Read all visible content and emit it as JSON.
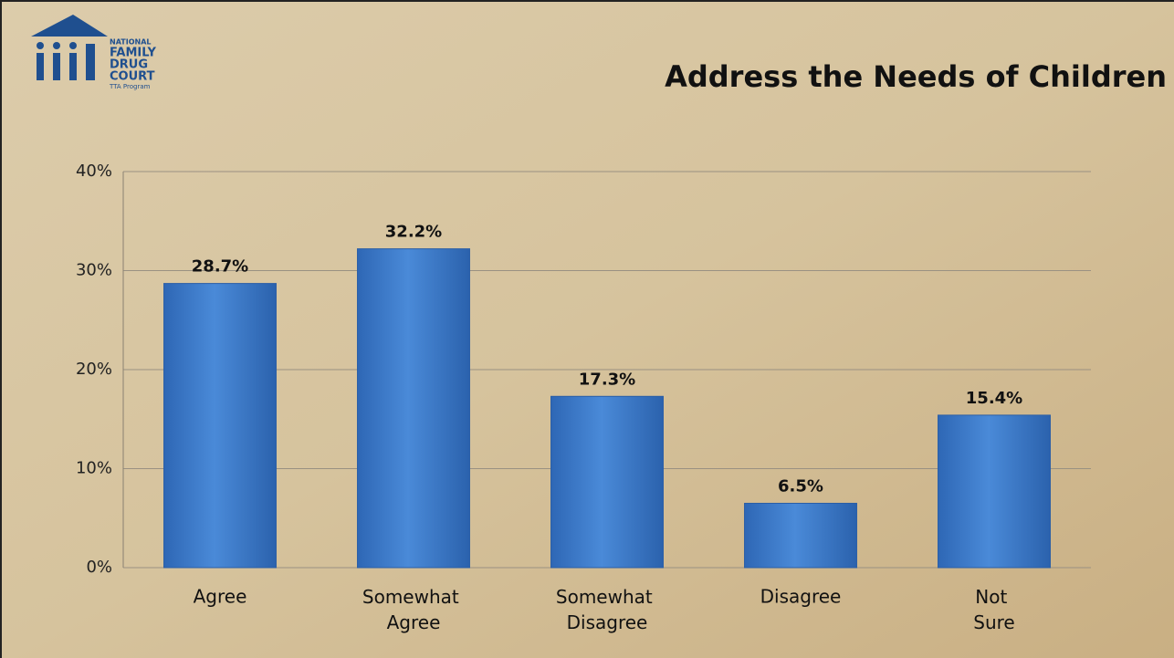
{
  "logo": {
    "lines": [
      "NATIONAL",
      "FAMILY",
      "DRUG",
      "COURT",
      "TTA Program"
    ]
  },
  "chart_data": {
    "type": "bar",
    "title": "Address the Needs of Children",
    "categories": [
      "Agree",
      "Somewhat Agree",
      "Somewhat Disagree",
      "Disagree",
      "Not Sure"
    ],
    "values": [
      28.7,
      32.2,
      17.3,
      6.5,
      15.4
    ],
    "value_labels": [
      "28.7%",
      "32.2%",
      "17.3%",
      "6.5%",
      "15.4%"
    ],
    "color": "#3b78c9",
    "ylim": [
      0,
      40
    ],
    "yticks": [
      {
        "value": 0,
        "label": "0%"
      },
      {
        "value": 10,
        "label": "10%"
      },
      {
        "value": 20,
        "label": "20%"
      },
      {
        "value": 30,
        "label": "30%"
      },
      {
        "value": 40,
        "label": "40%"
      }
    ],
    "grid": true
  }
}
